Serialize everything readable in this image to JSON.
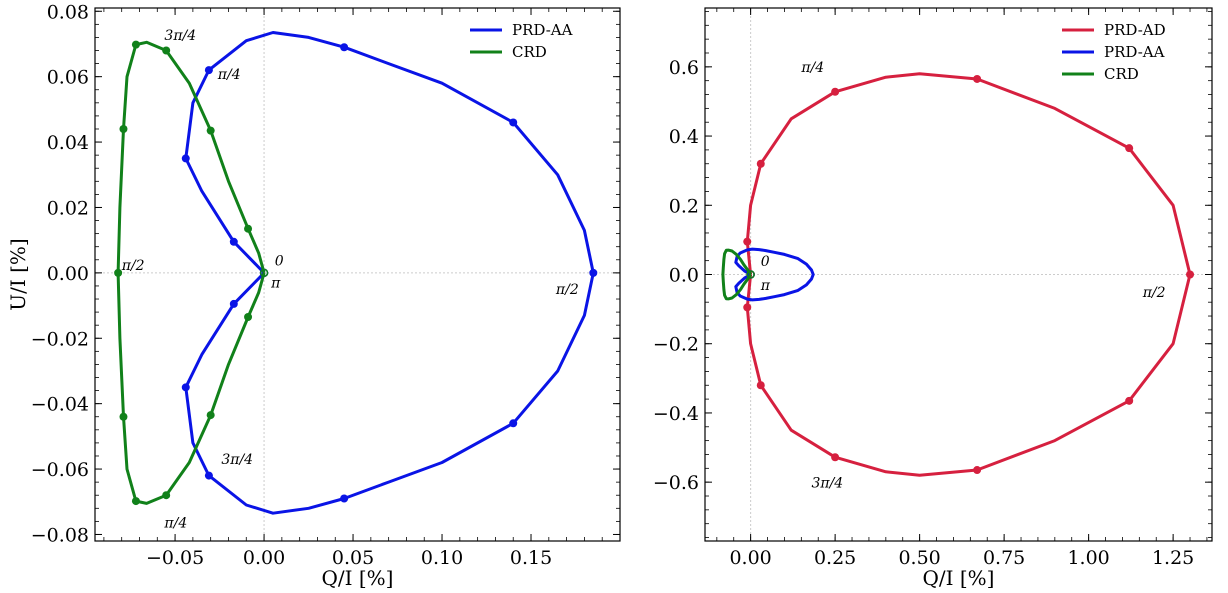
{
  "colors": {
    "prd_ad": "#d6203f",
    "prd_aa": "#0a14e6",
    "crd": "#11811a",
    "zero_line": "#cccccc"
  },
  "chart_data": [
    {
      "type": "line",
      "xlabel": "Q/I [%]",
      "ylabel": "U/I [%]",
      "xlim": [
        -0.095,
        0.2
      ],
      "ylim": [
        -0.082,
        0.081
      ],
      "xticks": [
        {
          "value": -0.05,
          "label": "−0.05"
        },
        {
          "value": 0.0,
          "label": "0.00"
        },
        {
          "value": 0.05,
          "label": "0.05"
        },
        {
          "value": 0.1,
          "label": "0.10"
        },
        {
          "value": 0.15,
          "label": "0.15"
        }
      ],
      "yticks": [
        {
          "value": 0.08,
          "label": "0.08"
        },
        {
          "value": 0.06,
          "label": "0.06"
        },
        {
          "value": 0.04,
          "label": "0.04"
        },
        {
          "value": 0.02,
          "label": "0.02"
        },
        {
          "value": 0.0,
          "label": "0.00"
        },
        {
          "value": -0.02,
          "label": "−0.02"
        },
        {
          "value": -0.04,
          "label": "−0.04"
        },
        {
          "value": -0.06,
          "label": "−0.06"
        },
        {
          "value": -0.08,
          "label": "−0.08"
        }
      ],
      "legend_position": "top-right",
      "series": [
        {
          "name": "PRD-AA",
          "color_key": "prd_aa",
          "points": [
            [
              0.0,
              0.0
            ],
            [
              -0.017,
              -0.0095
            ],
            [
              -0.035,
              -0.025
            ],
            [
              -0.044,
              -0.035
            ],
            [
              -0.04,
              -0.052
            ],
            [
              -0.031,
              -0.062
            ],
            [
              -0.01,
              -0.071
            ],
            [
              0.005,
              -0.0735
            ],
            [
              0.025,
              -0.072
            ],
            [
              0.045,
              -0.069
            ],
            [
              0.07,
              -0.064
            ],
            [
              0.1,
              -0.058
            ],
            [
              0.14,
              -0.046
            ],
            [
              0.165,
              -0.03
            ],
            [
              0.18,
              -0.013
            ],
            [
              0.185,
              0.0
            ],
            [
              0.18,
              0.013
            ],
            [
              0.165,
              0.03
            ],
            [
              0.14,
              0.046
            ],
            [
              0.1,
              0.058
            ],
            [
              0.07,
              0.064
            ],
            [
              0.045,
              0.069
            ],
            [
              0.025,
              0.072
            ],
            [
              0.005,
              0.0735
            ],
            [
              -0.01,
              0.071
            ],
            [
              -0.031,
              0.062
            ],
            [
              -0.04,
              0.052
            ],
            [
              -0.044,
              0.035
            ],
            [
              -0.035,
              0.025
            ],
            [
              -0.017,
              0.0095
            ],
            [
              0.0,
              0.0
            ]
          ],
          "markers": [
            [
              -0.017,
              0.0095
            ],
            [
              -0.044,
              0.035
            ],
            [
              -0.031,
              0.062
            ],
            [
              0.045,
              0.069
            ],
            [
              0.14,
              0.046
            ],
            [
              0.185,
              0.0
            ],
            [
              0.14,
              -0.046
            ],
            [
              0.045,
              -0.069
            ],
            [
              -0.031,
              -0.062
            ],
            [
              -0.044,
              -0.035
            ],
            [
              -0.017,
              -0.0095
            ]
          ]
        },
        {
          "name": "CRD",
          "color_key": "crd",
          "points": [
            [
              0.0,
              0.0
            ],
            [
              -0.003,
              0.006
            ],
            [
              -0.009,
              0.0135
            ],
            [
              -0.02,
              0.028
            ],
            [
              -0.03,
              0.0435
            ],
            [
              -0.042,
              0.058
            ],
            [
              -0.055,
              0.068
            ],
            [
              -0.066,
              0.0705
            ],
            [
              -0.072,
              0.0698
            ],
            [
              -0.077,
              0.06
            ],
            [
              -0.079,
              0.044
            ],
            [
              -0.081,
              0.02
            ],
            [
              -0.082,
              0.0
            ],
            [
              -0.081,
              -0.02
            ],
            [
              -0.079,
              -0.044
            ],
            [
              -0.077,
              -0.06
            ],
            [
              -0.072,
              -0.0698
            ],
            [
              -0.066,
              -0.0705
            ],
            [
              -0.055,
              -0.068
            ],
            [
              -0.042,
              -0.058
            ],
            [
              -0.03,
              -0.0435
            ],
            [
              -0.02,
              -0.028
            ],
            [
              -0.009,
              -0.0135
            ],
            [
              -0.003,
              -0.006
            ],
            [
              0.0,
              0.0
            ]
          ],
          "markers": [
            [
              -0.009,
              0.0135
            ],
            [
              -0.03,
              0.0435
            ],
            [
              -0.055,
              0.068
            ],
            [
              -0.072,
              0.0698
            ],
            [
              -0.079,
              0.044
            ],
            [
              -0.082,
              0.0
            ],
            [
              -0.079,
              -0.044
            ],
            [
              -0.072,
              -0.0698
            ],
            [
              -0.055,
              -0.068
            ],
            [
              -0.03,
              -0.0435
            ],
            [
              -0.009,
              -0.0135
            ]
          ]
        }
      ],
      "annotations": [
        {
          "text": "3π/4",
          "x": -0.056,
          "y": 0.0712,
          "anchor": "start"
        },
        {
          "text": "π/4",
          "x": -0.026,
          "y": 0.0593,
          "anchor": "start"
        },
        {
          "text": "π/2",
          "x": -0.08,
          "y": 0.0009,
          "anchor": "start"
        },
        {
          "text": "0",
          "x": 0.006,
          "y": 0.0022,
          "anchor": "start"
        },
        {
          "text": "π",
          "x": 0.004,
          "y": -0.0045,
          "anchor": "start"
        },
        {
          "text": "π/2",
          "x": 0.164,
          "y": -0.0065,
          "anchor": "start"
        },
        {
          "text": "3π/4",
          "x": -0.024,
          "y": -0.0585,
          "anchor": "start"
        },
        {
          "text": "π/4",
          "x": -0.056,
          "y": -0.0778,
          "anchor": "start"
        }
      ]
    },
    {
      "type": "line",
      "xlabel": "Q/I [%]",
      "ylabel": "",
      "xlim": [
        -0.135,
        1.365
      ],
      "ylim": [
        -0.77,
        0.77
      ],
      "xticks": [
        {
          "value": 0.0,
          "label": "0.00"
        },
        {
          "value": 0.25,
          "label": "0.25"
        },
        {
          "value": 0.5,
          "label": "0.50"
        },
        {
          "value": 0.75,
          "label": "0.75"
        },
        {
          "value": 1.0,
          "label": "1.00"
        },
        {
          "value": 1.25,
          "label": "1.25"
        }
      ],
      "yticks": [
        {
          "value": 0.6,
          "label": "0.6"
        },
        {
          "value": 0.4,
          "label": "0.4"
        },
        {
          "value": 0.2,
          "label": "0.2"
        },
        {
          "value": 0.0,
          "label": "0.0"
        },
        {
          "value": -0.2,
          "label": "−0.2"
        },
        {
          "value": -0.4,
          "label": "−0.4"
        },
        {
          "value": -0.6,
          "label": "−0.6"
        }
      ],
      "legend_position": "top-right",
      "series": [
        {
          "name": "PRD-AD",
          "color_key": "prd_ad",
          "points": [
            [
              0.0,
              0.0
            ],
            [
              -0.01,
              0.095
            ],
            [
              0.0,
              0.2
            ],
            [
              0.03,
              0.32
            ],
            [
              0.12,
              0.45
            ],
            [
              0.25,
              0.528
            ],
            [
              0.4,
              0.57
            ],
            [
              0.5,
              0.58
            ],
            [
              0.67,
              0.565
            ],
            [
              0.9,
              0.48
            ],
            [
              1.12,
              0.365
            ],
            [
              1.25,
              0.2
            ],
            [
              1.3,
              0.0
            ],
            [
              1.25,
              -0.2
            ],
            [
              1.12,
              -0.365
            ],
            [
              0.9,
              -0.48
            ],
            [
              0.67,
              -0.565
            ],
            [
              0.5,
              -0.58
            ],
            [
              0.4,
              -0.57
            ],
            [
              0.25,
              -0.528
            ],
            [
              0.12,
              -0.45
            ],
            [
              0.03,
              -0.32
            ],
            [
              0.0,
              -0.2
            ],
            [
              -0.01,
              -0.095
            ],
            [
              0.0,
              0.0
            ]
          ],
          "markers": [
            [
              -0.01,
              0.095
            ],
            [
              0.03,
              0.32
            ],
            [
              0.25,
              0.528
            ],
            [
              0.67,
              0.565
            ],
            [
              1.12,
              0.365
            ],
            [
              1.3,
              0.0
            ],
            [
              1.12,
              -0.365
            ],
            [
              0.67,
              -0.565
            ],
            [
              0.25,
              -0.528
            ],
            [
              0.03,
              -0.32
            ],
            [
              -0.01,
              -0.095
            ]
          ]
        },
        {
          "name": "PRD-AA",
          "color_key": "prd_aa",
          "points": [
            [
              0.0,
              0.0
            ],
            [
              -0.017,
              -0.0095
            ],
            [
              -0.035,
              -0.025
            ],
            [
              -0.044,
              -0.035
            ],
            [
              -0.04,
              -0.052
            ],
            [
              -0.031,
              -0.062
            ],
            [
              -0.01,
              -0.071
            ],
            [
              0.005,
              -0.0735
            ],
            [
              0.025,
              -0.072
            ],
            [
              0.045,
              -0.069
            ],
            [
              0.07,
              -0.064
            ],
            [
              0.1,
              -0.058
            ],
            [
              0.14,
              -0.046
            ],
            [
              0.165,
              -0.03
            ],
            [
              0.18,
              -0.013
            ],
            [
              0.185,
              0.0
            ],
            [
              0.18,
              0.013
            ],
            [
              0.165,
              0.03
            ],
            [
              0.14,
              0.046
            ],
            [
              0.1,
              0.058
            ],
            [
              0.07,
              0.064
            ],
            [
              0.045,
              0.069
            ],
            [
              0.025,
              0.072
            ],
            [
              0.005,
              0.0735
            ],
            [
              -0.01,
              0.071
            ],
            [
              -0.031,
              0.062
            ],
            [
              -0.04,
              0.052
            ],
            [
              -0.044,
              0.035
            ],
            [
              -0.035,
              0.025
            ],
            [
              -0.017,
              0.0095
            ],
            [
              0.0,
              0.0
            ]
          ],
          "markers": []
        },
        {
          "name": "CRD",
          "color_key": "crd",
          "points": [
            [
              0.0,
              0.0
            ],
            [
              -0.003,
              0.006
            ],
            [
              -0.009,
              0.0135
            ],
            [
              -0.02,
              0.028
            ],
            [
              -0.03,
              0.0435
            ],
            [
              -0.042,
              0.058
            ],
            [
              -0.055,
              0.068
            ],
            [
              -0.066,
              0.0705
            ],
            [
              -0.072,
              0.0698
            ],
            [
              -0.077,
              0.06
            ],
            [
              -0.079,
              0.044
            ],
            [
              -0.081,
              0.02
            ],
            [
              -0.082,
              0.0
            ],
            [
              -0.081,
              -0.02
            ],
            [
              -0.079,
              -0.044
            ],
            [
              -0.077,
              -0.06
            ],
            [
              -0.072,
              -0.0698
            ],
            [
              -0.066,
              -0.0705
            ],
            [
              -0.055,
              -0.068
            ],
            [
              -0.042,
              -0.058
            ],
            [
              -0.03,
              -0.0435
            ],
            [
              -0.02,
              -0.028
            ],
            [
              -0.009,
              -0.0135
            ],
            [
              -0.003,
              -0.006
            ],
            [
              0.0,
              0.0
            ]
          ],
          "markers": []
        }
      ],
      "annotations": [
        {
          "text": "π/4",
          "x": 0.15,
          "y": 0.585,
          "anchor": "start"
        },
        {
          "text": "0",
          "x": 0.03,
          "y": 0.025,
          "anchor": "start"
        },
        {
          "text": "π",
          "x": 0.03,
          "y": -0.045,
          "anchor": "start"
        },
        {
          "text": "π/2",
          "x": 1.16,
          "y": -0.065,
          "anchor": "start"
        },
        {
          "text": "3π/4",
          "x": 0.18,
          "y": -0.615,
          "anchor": "start"
        }
      ]
    }
  ]
}
